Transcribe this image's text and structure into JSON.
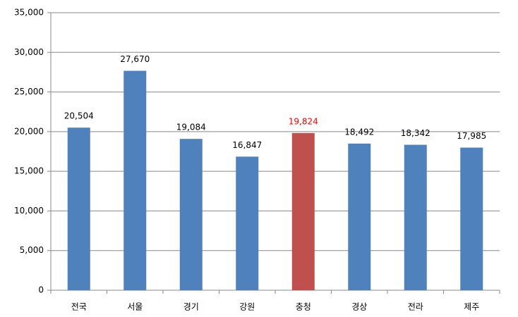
{
  "chart_data": {
    "type": "bar",
    "categories": [
      "전국",
      "서울",
      "경기",
      "강원",
      "충청",
      "경상",
      "전라",
      "제주"
    ],
    "values": [
      20504,
      27670,
      19084,
      16847,
      19824,
      18492,
      18342,
      17985
    ],
    "value_labels": [
      "20,504",
      "27,670",
      "19,084",
      "16,847",
      "19,824",
      "18,492",
      "18,342",
      "17,985"
    ],
    "colors": [
      "#4f81bd",
      "#4f81bd",
      "#4f81bd",
      "#4f81bd",
      "#c0504d",
      "#4f81bd",
      "#4f81bd",
      "#4f81bd"
    ],
    "label_colors": [
      "#000000",
      "#000000",
      "#000000",
      "#000000",
      "#ff0000",
      "#000000",
      "#000000",
      "#000000"
    ],
    "ylim": [
      0,
      35000
    ],
    "yticks": [
      0,
      {
        "value": 5000,
        "label": "5,000"
      },
      {
        "value": 10000,
        "label": "10,000"
      },
      {
        "value": 15000,
        "label": "15,000"
      },
      {
        "value": 20000,
        "label": "20,000"
      },
      {
        "value": 25000,
        "label": "25,000"
      },
      {
        "value": 30000,
        "label": "30,000"
      },
      {
        "value": 35000,
        "label": "35,000"
      }
    ],
    "grid": true
  }
}
